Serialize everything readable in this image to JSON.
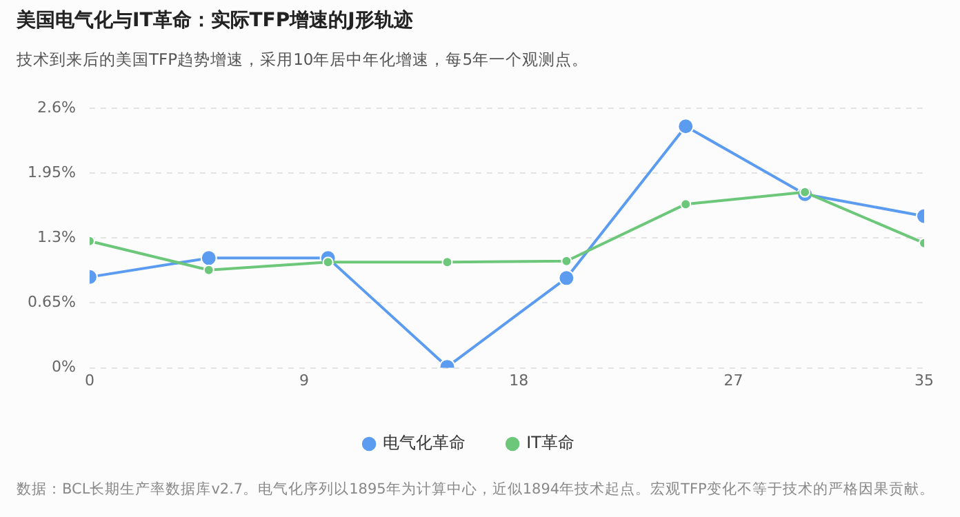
{
  "chart_data": {
    "type": "line",
    "title": "美国电气化与IT革命：实际TFP增速的J形轨迹",
    "subtitle": "技术到来后的美国TFP趋势增速，采用10年居中年化增速，每5年一个观测点。",
    "x": [
      0,
      5,
      10,
      15,
      20,
      25,
      30,
      35
    ],
    "series": [
      {
        "name": "电气化革命",
        "color": "#5b9cf0",
        "values": [
          0.91,
          1.1,
          1.1,
          0.01,
          0.9,
          2.42,
          1.74,
          1.52
        ]
      },
      {
        "name": "IT革命",
        "color": "#6cc77a",
        "values": [
          1.27,
          0.98,
          1.06,
          1.06,
          1.07,
          1.64,
          1.76,
          1.25
        ]
      }
    ],
    "xlim": [
      0,
      35
    ],
    "xticks": [
      0,
      9,
      18,
      27,
      35
    ],
    "ylim": [
      0,
      2.6
    ],
    "yticks": [
      {
        "value": 0,
        "label": "0%"
      },
      {
        "value": 0.65,
        "label": "0.65%"
      },
      {
        "value": 1.3,
        "label": "1.3%"
      },
      {
        "value": 1.95,
        "label": "1.95%"
      },
      {
        "value": 2.6,
        "label": "2.6%"
      }
    ],
    "grid": "y",
    "legend": "bottom",
    "marker": "circle",
    "line_style": "solid",
    "annotations": [
      "数据：BCL长期生产率数据库v2.7。电气化序列以1895年为计算中心，近似1894年技术起点。宏观TFP变化不等于技术的严格因果贡献。"
    ]
  }
}
